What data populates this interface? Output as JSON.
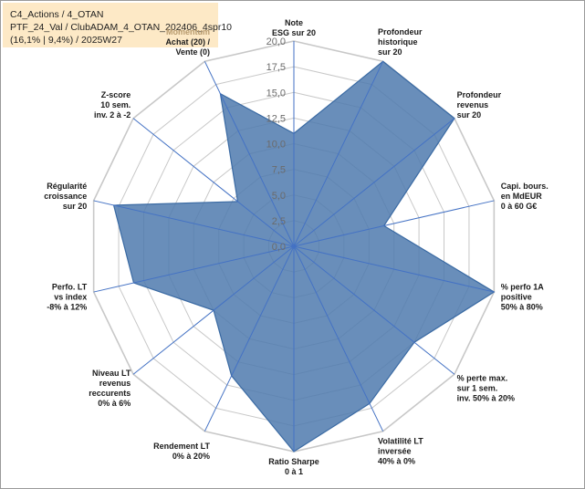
{
  "header": {
    "line1": "C4_Actions / 4_OTAN",
    "line2": "PTF_24_Val / ClubADAM_4_OTAN_202406_4spr10",
    "line3": "(16,1% | 9,4%) / 2025W27"
  },
  "chart_data": {
    "type": "radar",
    "rmin": 0,
    "rmax": 20,
    "ticks": [
      "0,0",
      "2,5",
      "5,0",
      "7,5",
      "10,0",
      "12,5",
      "15,0",
      "17,5",
      "20,0"
    ],
    "grid": true,
    "colors": {
      "fill": "#4f7aae",
      "stroke": "#3a6aa3",
      "spoke": "#4472c4",
      "grid": "#c8c8c8"
    },
    "categories": [
      {
        "lines": [
          "Note",
          "ESG sur 20"
        ]
      },
      {
        "lines": [
          "Profondeur",
          "historique",
          "sur 20"
        ]
      },
      {
        "lines": [
          "Profondeur",
          "revenus",
          "sur 20"
        ]
      },
      {
        "lines": [
          "Capi. bours.",
          "en MdEUR",
          "0 à 60 G€"
        ]
      },
      {
        "lines": [
          "% perfo 1A",
          "positive",
          "50% à 80%"
        ]
      },
      {
        "lines": [
          "% perte max.",
          "sur 1 sem.",
          "inv. 50% à 20%"
        ]
      },
      {
        "lines": [
          "Volatilité LT",
          "inversée",
          "40% à 0%"
        ]
      },
      {
        "lines": [
          "Ratio Sharpe",
          "0 à 1"
        ]
      },
      {
        "lines": [
          "Rendement LT",
          "0% à 20%"
        ]
      },
      {
        "lines": [
          "Niveau LT",
          "revenus",
          "reccurents",
          "0% à 6%"
        ]
      },
      {
        "lines": [
          "Perfo. LT",
          "vs index",
          "-8% à 12%"
        ]
      },
      {
        "lines": [
          "Régularité",
          "croissance",
          "sur 20"
        ]
      },
      {
        "lines": [
          "Z-score",
          "10 sem.",
          "inv. 2 à -2"
        ]
      },
      {
        "lines": [
          "Momentum",
          "Achat (20) /",
          "Vente (0)"
        ]
      }
    ],
    "series": [
      {
        "values": [
          11.0,
          20.0,
          20.0,
          9.0,
          20.0,
          15.0,
          17.0,
          20.0,
          14.0,
          10.0,
          16.0,
          18.0,
          7.0,
          16.5
        ]
      }
    ]
  }
}
